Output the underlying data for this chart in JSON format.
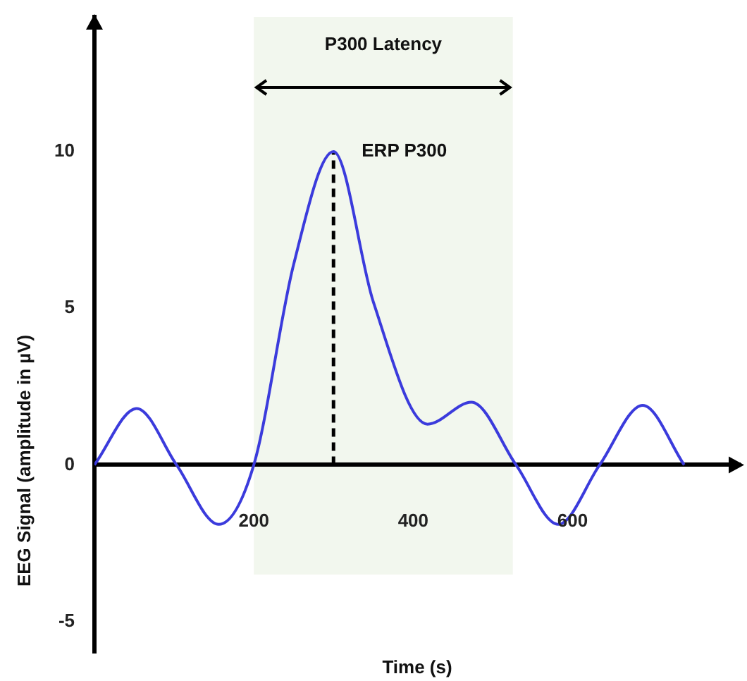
{
  "chart_data": {
    "type": "line",
    "xlabel": "Time (s)",
    "ylabel": "EEG Signal (amplitude in µV)",
    "xlim": [
      0,
      810
    ],
    "ylim": [
      -6,
      14.3
    ],
    "xticks": [
      200,
      400,
      600
    ],
    "yticks": [
      -5,
      0,
      5,
      10
    ],
    "series": [
      {
        "x": [
          0,
          53,
          103,
          156,
          200,
          250,
          300,
          350,
          418,
          473,
          529,
          582,
          634,
          688,
          740
        ],
        "values": [
          0,
          1.8,
          0,
          -1.9,
          0,
          6.4,
          10,
          5.2,
          1.3,
          2,
          0,
          -1.9,
          0,
          1.9,
          0
        ],
        "color": "#3b3bdc"
      },
      {
        "type": "line",
        "x": [
          300,
          300
        ],
        "values": [
          0,
          10
        ],
        "color": "#000000",
        "line_style": "dashed"
      }
    ],
    "bands": [
      {
        "axis": "x",
        "from": 200,
        "to": 525,
        "label": "P300 Latency",
        "color": "#f2f7ee"
      }
    ],
    "annotations": [
      {
        "text": "ERP P300",
        "x": 300,
        "y": 10
      }
    ],
    "marker": "none",
    "line_style": "solid",
    "grid": false,
    "legend": false
  }
}
